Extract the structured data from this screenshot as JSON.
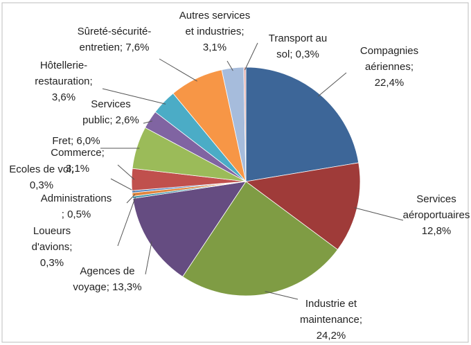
{
  "chart_data": {
    "type": "pie",
    "values": [
      22.4,
      12.8,
      24.2,
      13.3,
      0.3,
      0.5,
      0.3,
      3.1,
      6.0,
      2.6,
      3.6,
      7.6,
      3.1,
      0.3
    ],
    "value_labels": [
      "Compagnies\naériennes;\n22,4%",
      "Services\naéroportuaires\n12,8%",
      "Industrie et\nmaintenance;\n24,2%",
      "Agences de\nvoyage; 13,3%",
      "Loueurs\nd'avions;\n0,3%",
      "Administrations\n; 0,5%",
      "Ecoles de vol;\n0,3%",
      "Commerce;\n3,1%",
      "Fret; 6,0%",
      "Services\npublic; 2,6%",
      "Hôtellerie-\nrestauration;\n3,6%",
      "Sûreté-sécurité-\nentretien; 7,6%",
      "Autres services\net industries;\n3,1%",
      "Transport au\nsol; 0,3%"
    ],
    "colors": [
      "#3d6698",
      "#9f3b39",
      "#7f9c44",
      "#654c81",
      "#3c93a8",
      "#e0853d",
      "#4f81bd",
      "#c0504d",
      "#9bbb59",
      "#8064a2",
      "#4bacc6",
      "#f79646",
      "#a6bcdc",
      "#e6b0ae"
    ]
  }
}
